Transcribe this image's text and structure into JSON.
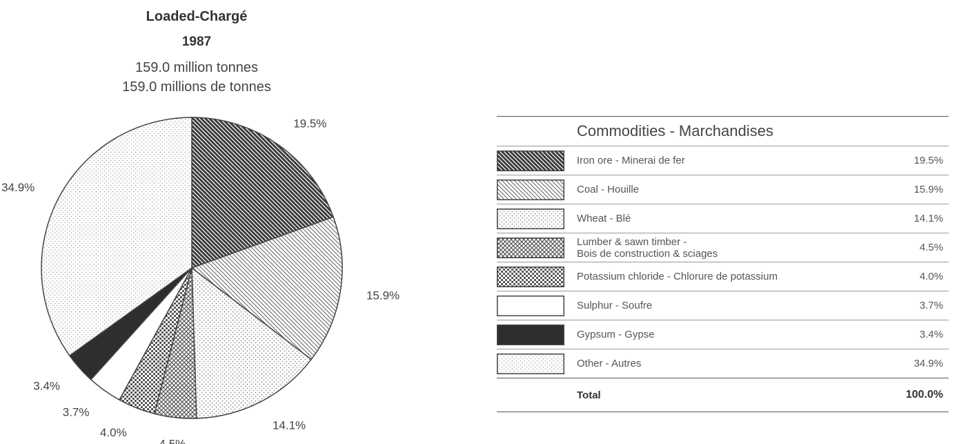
{
  "chart_data": {
    "type": "pie",
    "title": "Loaded-Chargé",
    "subtitle": [
      "1987",
      "159.0 million tonnes",
      "159.0 millions de tonnes"
    ],
    "legend_title": "Commodities - Marchandises",
    "series": [
      {
        "name": "Iron ore - Minerai de fer",
        "color": "#3a3a3a",
        "pattern": "hatch-dense",
        "values": [
          19.5
        ],
        "value_labels": [
          "19.5%"
        ]
      },
      {
        "name": "Coal - Houille",
        "color": "#777777",
        "pattern": "hatch",
        "values": [
          15.9
        ],
        "value_labels": [
          "15.9%"
        ]
      },
      {
        "name": "Wheat - Blé",
        "color": "#8a8a8a",
        "pattern": "dots",
        "values": [
          14.1
        ],
        "value_labels": [
          "14.1%"
        ]
      },
      {
        "name": "Lumber & sawn timber -\nBois de construction & sciages",
        "color": "#555555",
        "pattern": "cross",
        "values": [
          4.5
        ],
        "value_labels": [
          "4.5%"
        ]
      },
      {
        "name": "Potassium chloride - Chlorure de potassium",
        "color": "#4a4a4a",
        "pattern": "dots-dense",
        "values": [
          4.0
        ],
        "value_labels": [
          "4.0%"
        ]
      },
      {
        "name": "Sulphur - Soufre",
        "color": "#ffffff",
        "pattern": "solid",
        "values": [
          3.7
        ],
        "value_labels": [
          "3.7%"
        ]
      },
      {
        "name": "Gypsum - Gypse",
        "color": "#2e2e2e",
        "pattern": "solid",
        "values": [
          3.4
        ],
        "value_labels": [
          "3.4%"
        ]
      },
      {
        "name": "Other - Autres",
        "color": "#b5b5b5",
        "pattern": "dots",
        "values": [
          34.9
        ],
        "value_labels": [
          "34.9%"
        ]
      }
    ],
    "total": {
      "label": "Total",
      "value": 100,
      "value_label": "100.0%"
    }
  }
}
